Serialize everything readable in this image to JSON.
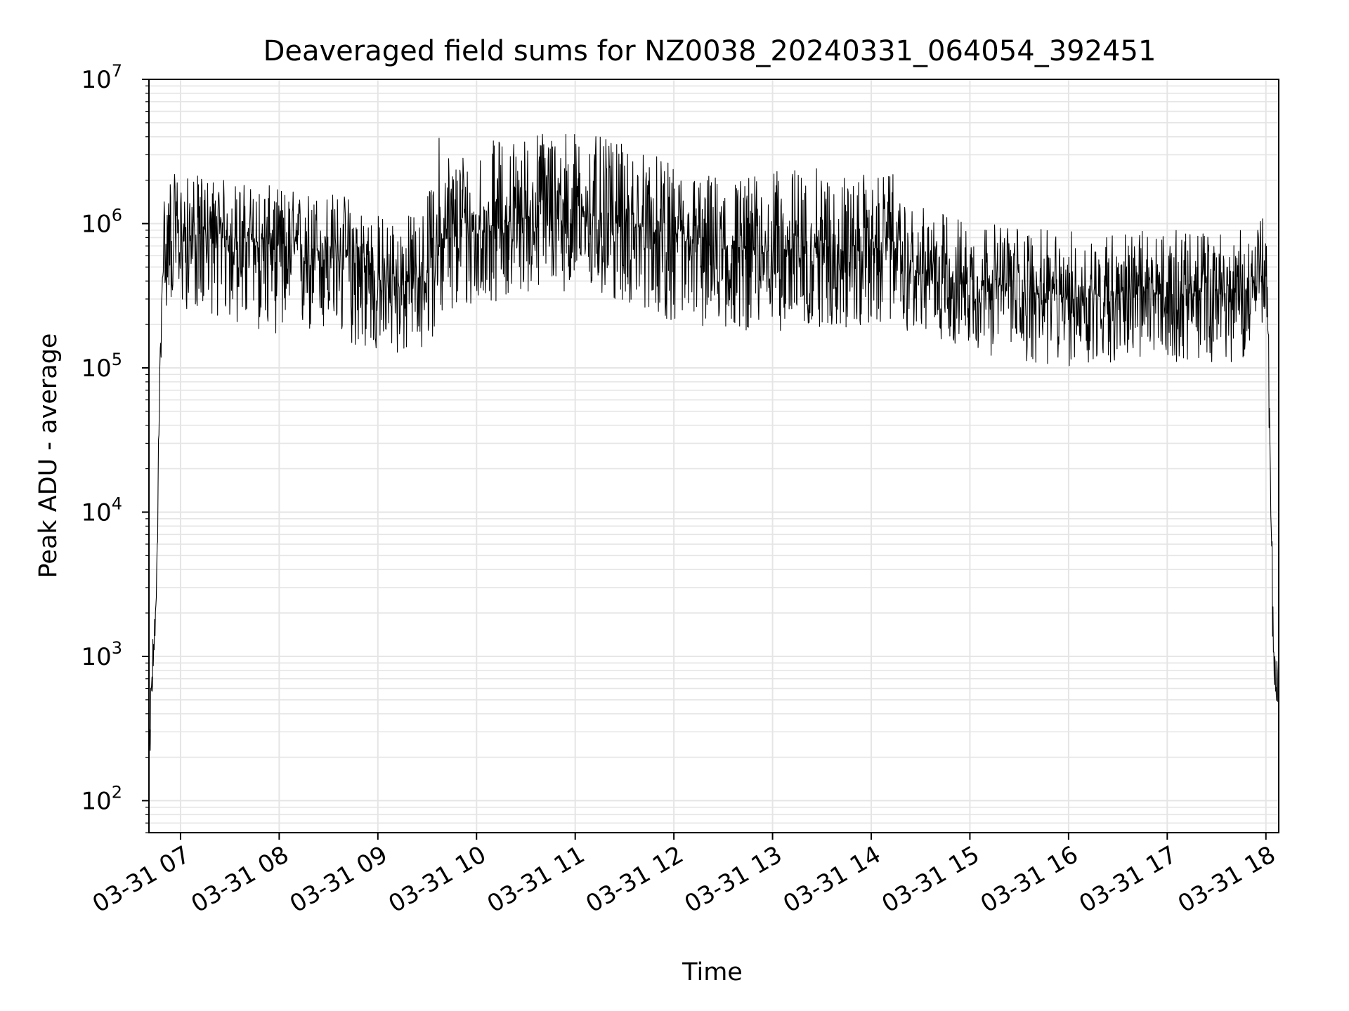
{
  "chart_data": {
    "type": "line",
    "title": "Deaveraged field sums for NZ0038_20240331_064054_392451",
    "xlabel": "Time",
    "ylabel": "Peak ADU - average",
    "yscale": "log",
    "ylim": [
      60,
      10000000
    ],
    "xlim": [
      "03-31 06:41",
      "03-31 18:08"
    ],
    "grid": true,
    "x_ticks": [
      "03-31 07",
      "03-31 08",
      "03-31 09",
      "03-31 10",
      "03-31 11",
      "03-31 12",
      "03-31 13",
      "03-31 14",
      "03-31 15",
      "03-31 16",
      "03-31 17",
      "03-31 18"
    ],
    "y_ticks": [
      {
        "base": "10",
        "exp": "2",
        "value": 100
      },
      {
        "base": "10",
        "exp": "3",
        "value": 1000
      },
      {
        "base": "10",
        "exp": "4",
        "value": 10000
      },
      {
        "base": "10",
        "exp": "5",
        "value": 100000
      },
      {
        "base": "10",
        "exp": "6",
        "value": 1000000
      },
      {
        "base": "10",
        "exp": "7",
        "value": 10000000
      }
    ],
    "line_color": "#000000",
    "grid_color": "#e5e5e5",
    "series": [
      {
        "x_hours": [
          6.68,
          6.7,
          6.72,
          6.74,
          6.76,
          6.78,
          6.8,
          6.82,
          6.85,
          6.88,
          6.9,
          6.93,
          6.95,
          7.0,
          7.25,
          7.5,
          7.75,
          8.0,
          8.25,
          8.5,
          8.75,
          9.0,
          9.25,
          9.5,
          9.6,
          9.75,
          10.0,
          10.25,
          10.5,
          10.75,
          11.0,
          11.25,
          11.5,
          11.75,
          12.0,
          12.25,
          12.5,
          12.75,
          13.0,
          13.25,
          13.5,
          13.75,
          14.0,
          14.25,
          14.3,
          14.5,
          14.75,
          15.0,
          15.25,
          15.5,
          15.75,
          16.0,
          16.25,
          16.5,
          16.75,
          17.0,
          17.25,
          17.5,
          17.75,
          17.95,
          18.0,
          18.03,
          18.06,
          18.08,
          18.1,
          18.12
        ],
        "y_median": [
          150,
          500,
          900,
          1500,
          4000,
          30000,
          200000,
          500000,
          600000,
          800000,
          900000,
          850000,
          850000,
          800000,
          850000,
          800000,
          750000,
          700000,
          650000,
          650000,
          550000,
          400000,
          380000,
          450000,
          750000,
          800000,
          900000,
          1000000,
          1100000,
          1300000,
          1200000,
          1100000,
          1000000,
          900000,
          750000,
          700000,
          650000,
          650000,
          650000,
          650000,
          700000,
          650000,
          650000,
          800000,
          450000,
          450000,
          450000,
          400000,
          380000,
          350000,
          320000,
          300000,
          320000,
          340000,
          330000,
          320000,
          330000,
          340000,
          320000,
          450000,
          500000,
          80000,
          5000,
          1200,
          800,
          500
        ],
        "y_low": [
          100,
          300,
          600,
          900,
          2500,
          20000,
          100000,
          200000,
          250000,
          280000,
          280000,
          280000,
          280000,
          250000,
          250000,
          200000,
          180000,
          170000,
          160000,
          160000,
          140000,
          120000,
          120000,
          130000,
          200000,
          220000,
          250000,
          300000,
          330000,
          350000,
          330000,
          300000,
          270000,
          250000,
          200000,
          190000,
          180000,
          180000,
          180000,
          180000,
          190000,
          180000,
          180000,
          220000,
          180000,
          180000,
          150000,
          130000,
          120000,
          110000,
          100000,
          100000,
          100000,
          110000,
          110000,
          110000,
          110000,
          110000,
          110000,
          200000,
          200000,
          40000,
          2000,
          600,
          400,
          400
        ],
        "y_high": [
          200,
          800,
          1500,
          2000,
          6000,
          50000,
          1000000,
          1800000,
          2000000,
          2200000,
          2300000,
          2200000,
          2200000,
          2100000,
          2200000,
          2000000,
          1900000,
          1800000,
          1700000,
          1700000,
          1600000,
          1200000,
          1100000,
          1500000,
          4500000,
          3500000,
          3500000,
          4000000,
          4200000,
          5000000,
          4500000,
          4000000,
          3500000,
          3200000,
          2500000,
          2300000,
          2200000,
          2200000,
          2300000,
          2500000,
          2400000,
          2200000,
          2200000,
          2200000,
          1300000,
          1300000,
          1200000,
          1100000,
          1000000,
          1000000,
          900000,
          900000,
          900000,
          900000,
          900000,
          900000,
          900000,
          900000,
          900000,
          1200000,
          1000000,
          150000,
          8000,
          2500,
          1500,
          700
        ]
      }
    ]
  }
}
